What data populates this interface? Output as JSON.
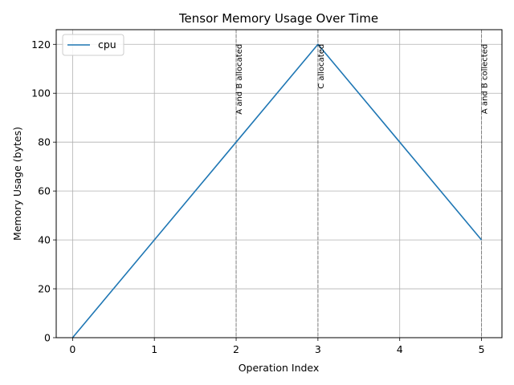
{
  "chart_data": {
    "type": "line",
    "title": "Tensor Memory Usage Over Time",
    "xlabel": "Operation Index",
    "ylabel": "Memory Usage (bytes)",
    "xlim": [
      -0.2,
      5.25
    ],
    "ylim": [
      0,
      126
    ],
    "xticks": [
      0,
      1,
      2,
      3,
      4,
      5
    ],
    "yticks": [
      0,
      20,
      40,
      60,
      80,
      100,
      120
    ],
    "grid": true,
    "legend_position": "upper-left",
    "series": [
      {
        "name": "cpu",
        "color": "#1f77b4",
        "x": [
          0,
          1,
          2,
          3,
          4,
          5
        ],
        "y": [
          0,
          40,
          80,
          120,
          80,
          40
        ]
      }
    ],
    "annotations": [
      {
        "x": 2,
        "text": "A and B allocated"
      },
      {
        "x": 3,
        "text": "C allocated"
      },
      {
        "x": 5,
        "text": "A and B collected"
      }
    ]
  }
}
